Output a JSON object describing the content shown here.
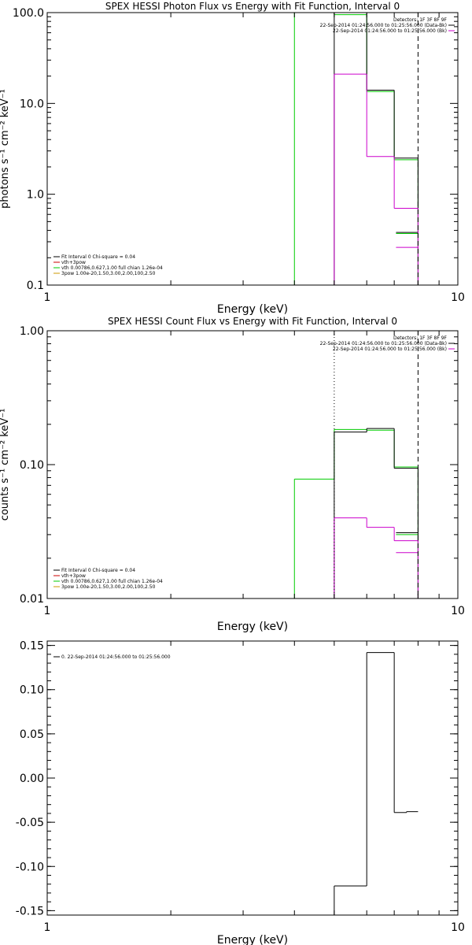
{
  "chart_data": [
    {
      "type": "line",
      "title": "SPEX HESSI Photon Flux vs Energy with Fit Function, Interval 0",
      "xlabel": "Energy (keV)",
      "ylabel": "photons s⁻¹ cm⁻² keV⁻¹",
      "xscale": "log",
      "yscale": "log",
      "xlim": [
        1,
        10
      ],
      "ylim": [
        0.1,
        100
      ],
      "xticks": [
        {
          "v": 1,
          "label": "1"
        },
        {
          "v": 10,
          "label": "10"
        }
      ],
      "yticks": [
        {
          "v": 100,
          "label": "100.0"
        },
        {
          "v": 10,
          "label": "10.0"
        },
        {
          "v": 1,
          "label": "1.0"
        },
        {
          "v": 0.1,
          "label": "0.1"
        }
      ],
      "vlines": [
        {
          "x": 8.0,
          "style": "dashed",
          "color": "#000000"
        }
      ],
      "left_legend": [
        {
          "text": "Fit Interval  0    Chi-square = 0.04",
          "color": "#000000"
        },
        {
          "text": "vth+3pow",
          "color": "#cc0000"
        },
        {
          "text": "vth 0.00786,0.627,1.00  full chian 1.26e-04",
          "color": "#00cc00"
        },
        {
          "text": "3pow 1.00e-20,1.50,3.00,2.00,100,2.50",
          "color": "#cc9900"
        }
      ],
      "right_legend": [
        {
          "text": "Detectors: 1F 3F 8F 9F",
          "color": "#000000"
        },
        {
          "text": "22-Sep-2014 01:24:56.000 to 01:25:56.000 (Data-Bk)",
          "color": "#000000"
        },
        {
          "text": "22-Sep-2014 01:24:56.000 to 01:25:56.000 (Bk)",
          "color": "#cc00cc"
        }
      ],
      "series": [
        {
          "color": "#000000",
          "steps": [
            [
              5,
              6,
              100
            ],
            [
              6,
              7,
              14
            ],
            [
              7,
              8,
              2.5
            ],
            [
              8,
              8,
              0.38
            ]
          ]
        },
        {
          "color": "#00cc00",
          "steps": [
            [
              4,
              5,
              100
            ],
            [
              5,
              6,
              95
            ],
            [
              6,
              7,
              13.5
            ],
            [
              7,
              8,
              2.4
            ],
            [
              8,
              8,
              0.37
            ]
          ]
        },
        {
          "color": "#cc00cc",
          "steps": [
            [
              5,
              6,
              21
            ],
            [
              6,
              7,
              2.6
            ],
            [
              7,
              8,
              0.7
            ],
            [
              8,
              8,
              0.26
            ]
          ]
        }
      ]
    },
    {
      "type": "line",
      "title": "SPEX HESSI Count Flux vs Energy with Fit Function, Interval 0",
      "xlabel": "Energy (keV)",
      "ylabel": "counts s⁻¹ cm⁻² keV⁻¹",
      "xscale": "log",
      "yscale": "log",
      "xlim": [
        1,
        10
      ],
      "ylim": [
        0.01,
        1
      ],
      "xticks": [
        {
          "v": 1,
          "label": "1"
        },
        {
          "v": 10,
          "label": "10"
        }
      ],
      "yticks": [
        {
          "v": 1,
          "label": "1.00"
        },
        {
          "v": 0.1,
          "label": "0.10"
        },
        {
          "v": 0.01,
          "label": "0.01"
        }
      ],
      "vlines": [
        {
          "x": 5.0,
          "style": "dotted",
          "color": "#000000"
        },
        {
          "x": 8.0,
          "style": "dashed",
          "color": "#000000"
        }
      ],
      "left_legend": [
        {
          "text": "Fit Interval  0    Chi-square = 0.04",
          "color": "#000000"
        },
        {
          "text": "vth+3pow",
          "color": "#cc0000"
        },
        {
          "text": "vth 0.00786,0.627,1.00  full chian 1.26e-04",
          "color": "#00cc00"
        },
        {
          "text": "3pow 1.00e-20,1.50,3.00,2.00,100,2.50",
          "color": "#cc9900"
        }
      ],
      "right_legend": [
        {
          "text": "Detectors: 1F 3F 8F 9F",
          "color": "#000000"
        },
        {
          "text": "22-Sep-2014 01:24:56.000 to 01:25:56.000 (Data-Bk)",
          "color": "#000000"
        },
        {
          "text": "22-Sep-2014 01:24:56.000 to 01:25:56.000 (Bk)",
          "color": "#cc00cc"
        }
      ],
      "series": [
        {
          "color": "#000000",
          "steps": [
            [
              5,
              6,
              0.175
            ],
            [
              6,
              7,
              0.186
            ],
            [
              7,
              8,
              0.094
            ],
            [
              8,
              8,
              0.031
            ]
          ]
        },
        {
          "color": "#00cc00",
          "steps": [
            [
              4,
              5,
              0.078
            ],
            [
              5,
              6,
              0.183
            ],
            [
              6,
              7,
              0.181
            ],
            [
              7,
              8,
              0.096
            ],
            [
              8,
              8,
              0.03
            ]
          ]
        },
        {
          "color": "#cc00cc",
          "steps": [
            [
              5,
              6,
              0.04
            ],
            [
              6,
              7,
              0.034
            ],
            [
              7,
              8,
              0.027
            ],
            [
              8,
              8,
              0.022
            ]
          ]
        }
      ]
    },
    {
      "type": "line",
      "title": "",
      "xlabel": "Energy (keV)",
      "ylabel": "",
      "xscale": "log",
      "yscale": "linear",
      "xlim": [
        1,
        10
      ],
      "ylim": [
        -0.155,
        0.155
      ],
      "xticks": [
        {
          "v": 1,
          "label": "1"
        },
        {
          "v": 10,
          "label": "10"
        }
      ],
      "yticks": [
        {
          "v": 0.15,
          "label": "0.15"
        },
        {
          "v": 0.1,
          "label": "0.10"
        },
        {
          "v": 0.05,
          "label": "0.05"
        },
        {
          "v": 0.0,
          "label": "0.00"
        },
        {
          "v": -0.05,
          "label": "-0.05"
        },
        {
          "v": -0.1,
          "label": "-0.10"
        },
        {
          "v": -0.15,
          "label": "-0.15"
        }
      ],
      "vlines": [],
      "left_legend": [
        {
          "text": "0. 22-Sep-2014 01:24:56.000 to 01:25:56.000",
          "color": "#000000"
        }
      ],
      "right_legend": [],
      "series": [
        {
          "color": "#000000",
          "steps": [
            [
              5,
              6,
              -0.122
            ],
            [
              6,
              7,
              0.142
            ],
            [
              7,
              7.5,
              -0.039
            ],
            [
              7.5,
              8,
              -0.038
            ]
          ]
        }
      ]
    }
  ]
}
